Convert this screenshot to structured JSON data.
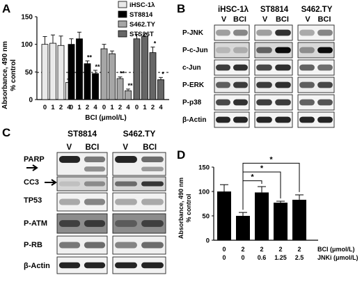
{
  "panels": {
    "A": {
      "letter": "A",
      "chart_data": {
        "type": "bar",
        "xlabel": "BCI (μmol/L)",
        "ylabel_lines": [
          "Absorbance, 490 nm",
          "% control"
        ],
        "ylim": [
          0,
          150
        ],
        "yticks": [
          "0",
          "50",
          "100",
          "150"
        ],
        "reference_line": 50,
        "categories": [
          "0",
          "1",
          "2",
          "4"
        ],
        "series": [
          {
            "name": "iHSC-1λ",
            "color": "#e9e9e9",
            "values": [
              100,
              102,
              98,
              31
            ],
            "errors": [
              14,
              15,
              17,
              6
            ],
            "labels": [
              "",
              "",
              "",
              "**"
            ]
          },
          {
            "name": "ST8814",
            "color": "#000000",
            "values": [
              100,
              110,
              65,
              47
            ],
            "errors": [
              10,
              12,
              5,
              6
            ],
            "labels": [
              "",
              "",
              "**",
              "**"
            ]
          },
          {
            "name": "S462.TY",
            "color": "#a6a6a6",
            "values": [
              92,
              83,
              38,
              16
            ],
            "errors": [
              8,
              5,
              3,
              3
            ],
            "labels": [
              "",
              "",
              "**",
              "**"
            ]
          },
          {
            "name": "STS26T",
            "color": "#666666",
            "values": [
              110,
              114,
              85,
              36
            ],
            "errors": [
              8,
              5,
              10,
              4
            ],
            "labels": [
              "",
              "",
              "*",
              "*"
            ]
          }
        ]
      }
    },
    "B": {
      "letter": "B",
      "cell_lines": [
        "iHSC-1λ",
        "ST8814",
        "S462.TY"
      ],
      "lanes": [
        "V",
        "BCI"
      ],
      "rows": [
        "P-JNK",
        "P-c-Jun",
        "c-Jun",
        "P-ERK",
        "P-p38",
        "β-Actin"
      ]
    },
    "C": {
      "letter": "C",
      "cell_lines": [
        "ST8814",
        "S462.TY"
      ],
      "lanes": [
        "V",
        "BCI"
      ],
      "rows": [
        "PARP",
        "CC3",
        "TP53",
        "P-ATM",
        "P-RB",
        "β-Actin"
      ]
    },
    "D": {
      "letter": "D",
      "chart_data": {
        "type": "bar",
        "ylabel_lines": [
          "Absorbance, 490 nm",
          "% control"
        ],
        "ylim": [
          0,
          150
        ],
        "yticks": [
          "0",
          "50",
          "100",
          "150"
        ],
        "row_labels": [
          "BCI (μmol/L)",
          "JNKi (μmol/L)"
        ],
        "bci": [
          "0",
          "2",
          "2",
          "2",
          "2"
        ],
        "jnki": [
          "0",
          "0",
          "0.6",
          "1.25",
          "2.5"
        ],
        "values": [
          100,
          50,
          98,
          77,
          83
        ],
        "errors": [
          14,
          7,
          12,
          3,
          10
        ],
        "color": "#000000",
        "significance": [
          {
            "from": 1,
            "to": 2,
            "label": "*"
          },
          {
            "from": 1,
            "to": 3,
            "label": "*"
          },
          {
            "from": 1,
            "to": 4,
            "label": "*"
          }
        ]
      }
    }
  }
}
